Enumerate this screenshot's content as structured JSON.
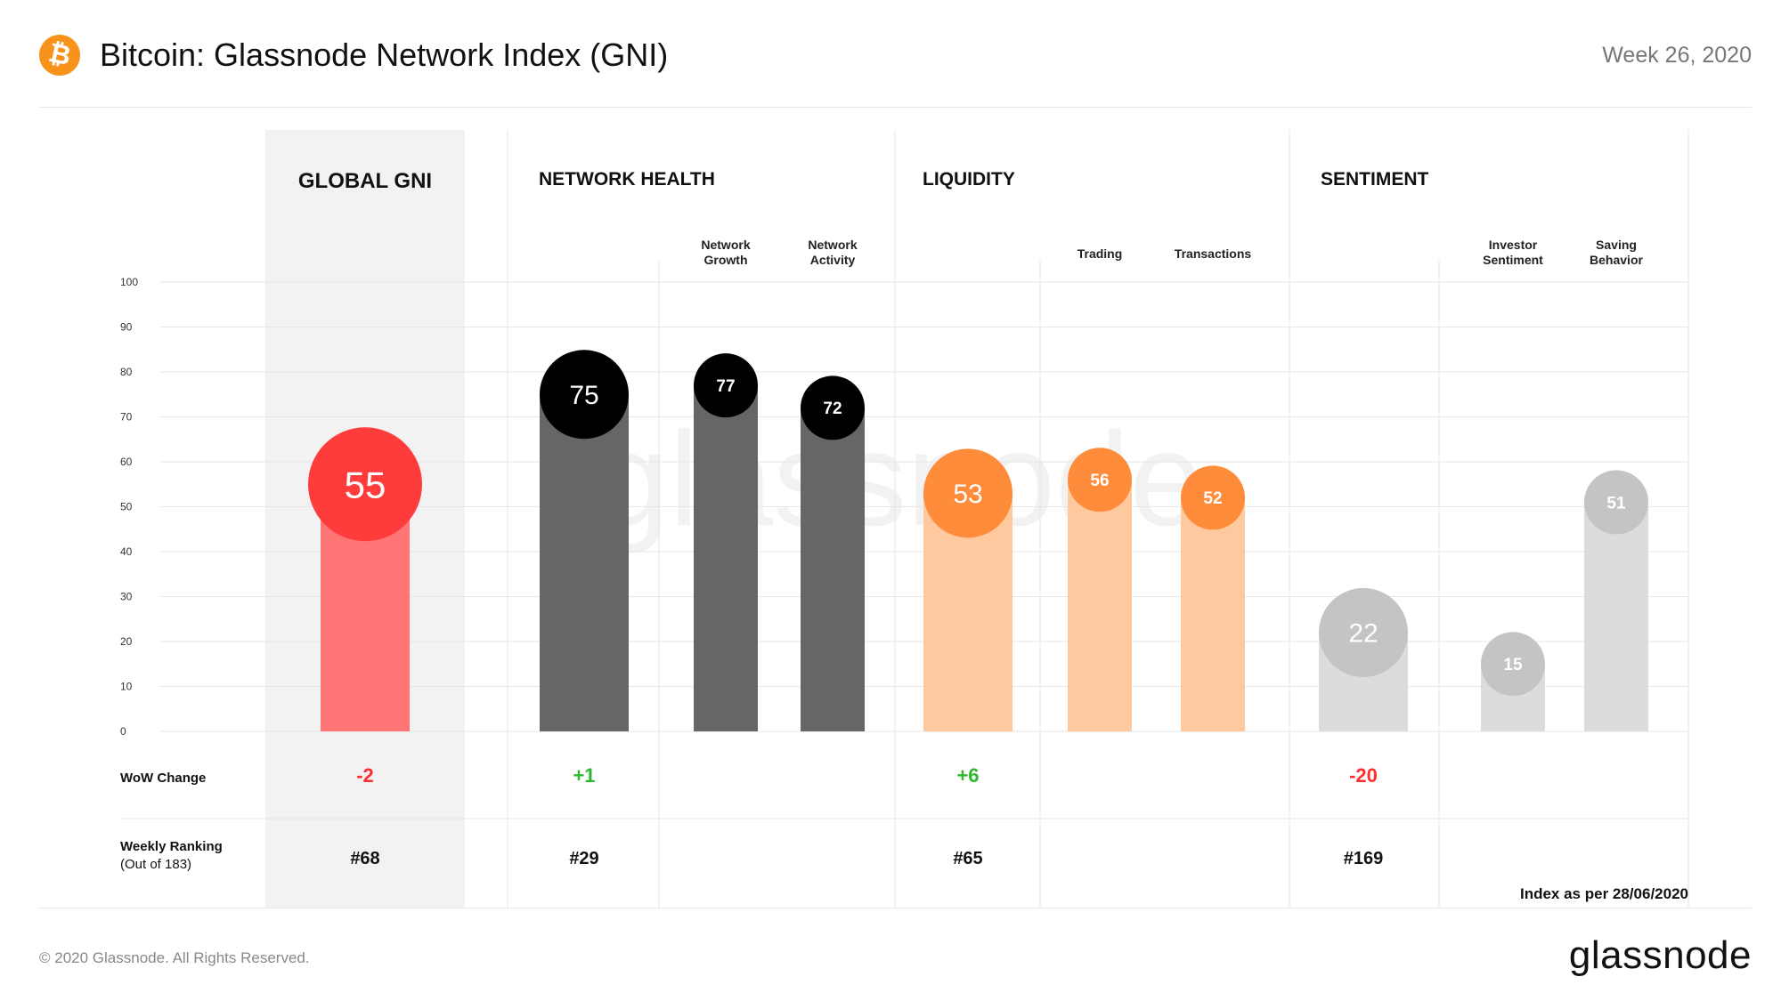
{
  "header": {
    "logo_icon": "bitcoin-icon",
    "logo_glyph": "₿",
    "title": "Bitcoin: Glassnode Network Index (GNI)",
    "week": "Week 26, 2020"
  },
  "footer": {
    "copyright": "© 2020 Glassnode. All Rights Reserved.",
    "brand": "glassnode"
  },
  "watermark": "glassnode",
  "chart_data": {
    "type": "bar",
    "ylim": [
      0,
      100
    ],
    "yticks": [
      "0",
      "10",
      "20",
      "30",
      "40",
      "50",
      "60",
      "70",
      "80",
      "90",
      "100"
    ],
    "grid": true,
    "row_labels": {
      "wow": "WoW  Change",
      "ranking": "Weekly Ranking",
      "ranking_sub": "(Out of 183)"
    },
    "index_note": "Index as per 28/06/2020",
    "groups": [
      {
        "name": "GLOBAL GNI",
        "wow": "-2",
        "ranking": "#68",
        "bars": [
          {
            "label": "",
            "value": 55,
            "display": "55",
            "bar_color": "#ff7474",
            "circle_color": "#ff3c3c",
            "main": true
          }
        ]
      },
      {
        "name": "NETWORK HEALTH",
        "wow": "+1",
        "ranking": "#29",
        "bars": [
          {
            "label": "",
            "value": 75,
            "display": "75",
            "bar_color": "#666666",
            "circle_color": "#000000",
            "main": true
          },
          {
            "label": [
              "Network",
              "Growth"
            ],
            "value": 77,
            "display": "77",
            "bar_color": "#666666",
            "circle_color": "#000000",
            "main": false
          },
          {
            "label": [
              "Network",
              "Activity"
            ],
            "value": 72,
            "display": "72",
            "bar_color": "#666666",
            "circle_color": "#000000",
            "main": false
          }
        ]
      },
      {
        "name": "LIQUIDITY",
        "wow": "+6",
        "ranking": "#65",
        "bars": [
          {
            "label": "",
            "value": 53,
            "display": "53",
            "bar_color": "#ffc9a0",
            "circle_color": "#ff8c3a",
            "main": true
          },
          {
            "label": [
              "Trading"
            ],
            "value": 56,
            "display": "56",
            "bar_color": "#ffc9a0",
            "circle_color": "#ff8c3a",
            "main": false
          },
          {
            "label": [
              "Transactions"
            ],
            "value": 52,
            "display": "52",
            "bar_color": "#ffc9a0",
            "circle_color": "#ff8c3a",
            "main": false
          }
        ]
      },
      {
        "name": "SENTIMENT",
        "wow": "-20",
        "ranking": "#169",
        "bars": [
          {
            "label": "",
            "value": 22,
            "display": "22",
            "bar_color": "#dcdcdc",
            "circle_color": "#c4c4c4",
            "main": true
          },
          {
            "label": [
              "Investor",
              "Sentiment"
            ],
            "value": 15,
            "display": "15",
            "bar_color": "#dcdcdc",
            "circle_color": "#c4c4c4",
            "main": false
          },
          {
            "label": [
              "Saving",
              "Behavior"
            ],
            "value": 51,
            "display": "51",
            "bar_color": "#dcdcdc",
            "circle_color": "#c4c4c4",
            "main": false
          }
        ]
      }
    ],
    "colors": {
      "positive": "#2eb82e",
      "negative": "#ff2e2e"
    }
  }
}
